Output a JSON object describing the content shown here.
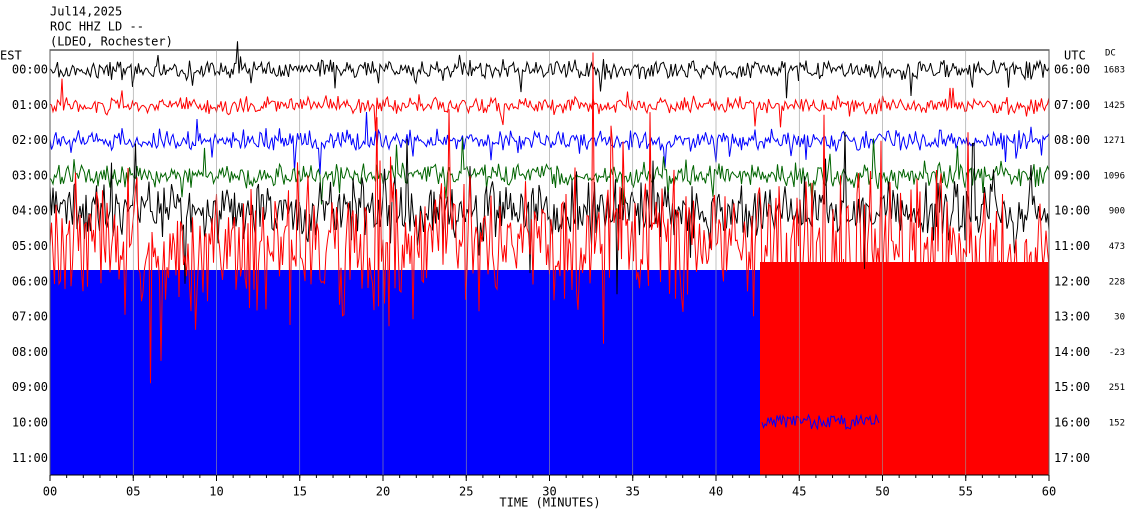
{
  "header": {
    "date": "Jul14,2025",
    "station": "ROC HHZ LD --",
    "network": "(LDEO, Rochester)"
  },
  "left_zone": "EST",
  "right_zone": "UTC",
  "dc_label": "DC",
  "rows": [
    {
      "est": "00:00",
      "utc": "06:00",
      "dc": "1683",
      "color": "#000000"
    },
    {
      "est": "01:00",
      "utc": "07:00",
      "dc": "1425",
      "color": "#ff0000"
    },
    {
      "est": "02:00",
      "utc": "08:00",
      "dc": "1271",
      "color": "#0000ff"
    },
    {
      "est": "03:00",
      "utc": "09:00",
      "dc": "1096",
      "color": "#006400"
    },
    {
      "est": "04:00",
      "utc": "10:00",
      "dc": "900",
      "color": "#000000"
    },
    {
      "est": "05:00",
      "utc": "11:00",
      "dc": "473",
      "color": "#ff0000"
    },
    {
      "est": "06:00",
      "utc": "12:00",
      "dc": "228",
      "color": "#0000ff"
    },
    {
      "est": "07:00",
      "utc": "13:00",
      "dc": "30",
      "color": "#006400"
    },
    {
      "est": "08:00",
      "utc": "14:00",
      "dc": "-23",
      "color": "#000000"
    },
    {
      "est": "09:00",
      "utc": "15:00",
      "dc": "251",
      "color": "#ff0000"
    },
    {
      "est": "10:00",
      "utc": "16:00",
      "dc": "152",
      "color": "#0000ff"
    },
    {
      "est": "11:00",
      "utc": "17:00",
      "color": "#006400"
    }
  ],
  "x_ticks": [
    "00",
    "05",
    "10",
    "15",
    "20",
    "25",
    "30",
    "35",
    "40",
    "45",
    "50",
    "55",
    "60"
  ],
  "x_label": "TIME (MINUTES)"
}
